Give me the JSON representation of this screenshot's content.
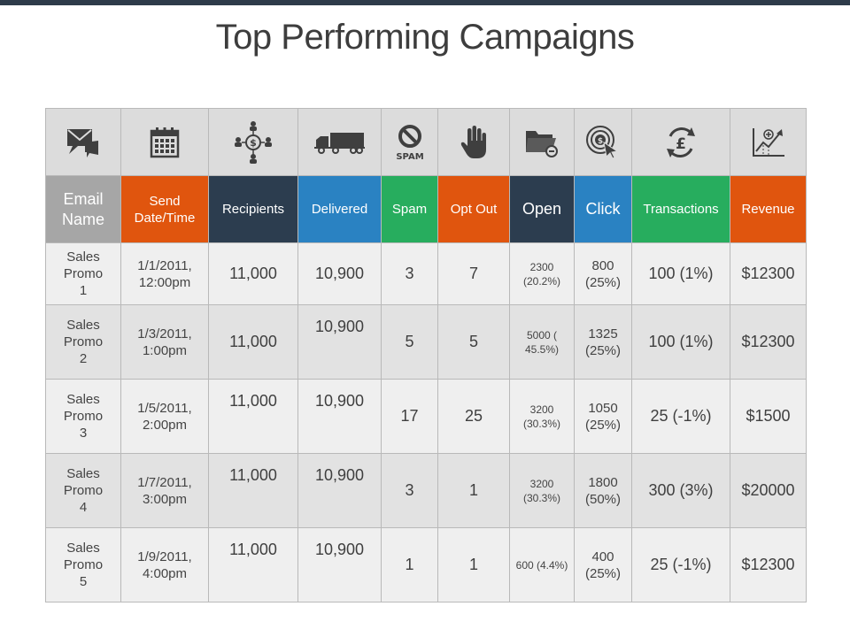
{
  "title": "Top Performing Campaigns",
  "icons": [
    "email-icon",
    "calendar-icon",
    "network-icon",
    "truck-icon",
    "spam-icon",
    "hand-icon",
    "folder-icon",
    "target-icon",
    "pound-exchange-icon",
    "growth-chart-icon"
  ],
  "icon_text": {
    "spam": "SPAM"
  },
  "columns": [
    {
      "label": "Email Name",
      "color": "#a6a6a6"
    },
    {
      "label": "Send Date/Time",
      "color": "#e0550e"
    },
    {
      "label": "Recipients",
      "color": "#2c3d4f"
    },
    {
      "label": "Delivered",
      "color": "#2a82c2"
    },
    {
      "label": "Spam",
      "color": "#27ad5e"
    },
    {
      "label": "Opt Out",
      "color": "#e0550e"
    },
    {
      "label": "Open",
      "color": "#2c3d4f"
    },
    {
      "label": "Click",
      "color": "#2a82c2"
    },
    {
      "label": "Transactions",
      "color": "#27ad5e"
    },
    {
      "label": "Revenue",
      "color": "#e0550e"
    }
  ],
  "rows": [
    {
      "name": "Sales Promo 1",
      "date": "1/1/2011, 12:00pm",
      "recipients": "11,000",
      "delivered": "10,900",
      "spam": "3",
      "optout": "7",
      "open": "2300 (20.2%)",
      "click": "800 (25%)",
      "transactions": "100 (1%)",
      "revenue": "$12300"
    },
    {
      "name": "Sales Promo 2",
      "date": "1/3/2011, 1:00pm",
      "recipients": "11,000",
      "delivered": "10,900",
      "spam": "5",
      "optout": "5",
      "open": "5000 ( 45.5%)",
      "click": "1325 (25%)",
      "transactions": "100 (1%)",
      "revenue": "$12300"
    },
    {
      "name": "Sales Promo 3",
      "date": "1/5/2011, 2:00pm",
      "recipients": "11,000",
      "delivered": "10,900",
      "spam": "17",
      "optout": "25",
      "open": "3200 (30.3%)",
      "click": "1050 (25%)",
      "transactions": "25 (-1%)",
      "revenue": "$1500"
    },
    {
      "name": "Sales Promo 4",
      "date": "1/7/2011, 3:00pm",
      "recipients": "11,000",
      "delivered": "10,900",
      "spam": "3",
      "optout": "1",
      "open": "3200 (30.3%)",
      "click": "1800 (50%)",
      "transactions": "300 (3%)",
      "revenue": "$20000"
    },
    {
      "name": "Sales Promo 5",
      "date": "1/9/2011, 4:00pm",
      "recipients": "11,000",
      "delivered": "10,900",
      "spam": "1",
      "optout": "1",
      "open": "600 (4.4%)",
      "click": "400 (25%)",
      "transactions": "25 (-1%)",
      "revenue": "$12300"
    }
  ]
}
